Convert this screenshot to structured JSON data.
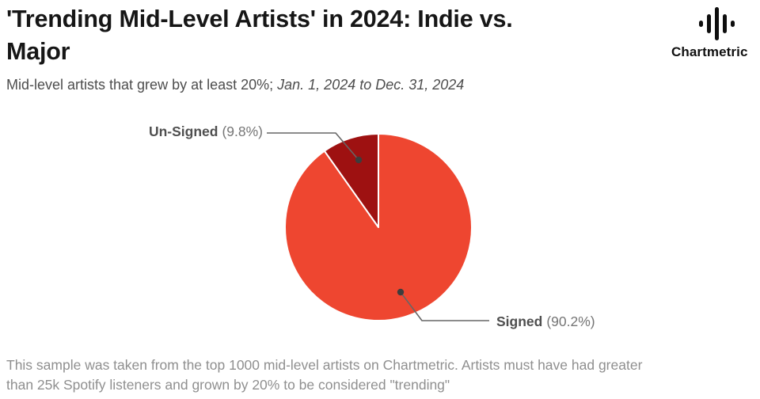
{
  "header": {
    "title_lines": [
      "'Trending Mid-Level Artists' in 2024: Indie vs.",
      "Major"
    ],
    "subtitle_regular": "Mid-level artists that grew by at least 20%;",
    "subtitle_italic": "Jan. 1, 2024 to Dec. 31, 2024",
    "brand_name": "Chartmetric"
  },
  "chart_data": {
    "type": "pie",
    "title": "'Trending Mid-Level Artists' in 2024: Indie vs. Major",
    "subtitle": "Mid-level artists that grew by at least 20%; Jan. 1, 2024 to Dec. 31, 2024",
    "start_angle_deg": 0,
    "direction": "clockwise",
    "slice_border_color": "#ffffff",
    "leader_line_color": "#666666",
    "leader_dot_color": "#3d3d3d",
    "slices": [
      {
        "name": "Signed",
        "value": 90.2,
        "display_pct": "(90.2%)",
        "color": "#EE4630"
      },
      {
        "name": "Un-Signed",
        "value": 9.8,
        "display_pct": "(9.8%)",
        "color": "#9E1111"
      }
    ]
  },
  "footer": {
    "lines": [
      "This sample was taken from the top 1000 mid-level artists on Chartmetric. Artists must have had greater",
      "than 25k Spotify listeners and grown by 20% to be considered \"trending\""
    ]
  }
}
